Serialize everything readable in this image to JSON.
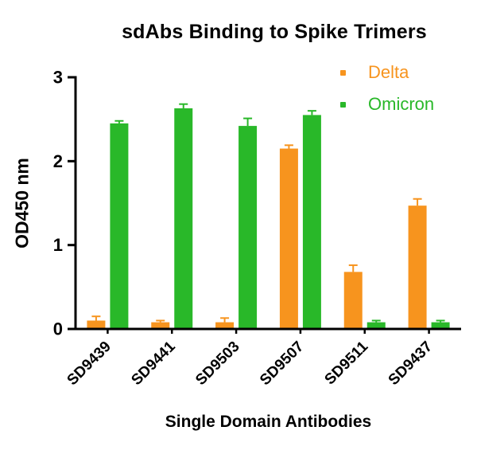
{
  "chart_data": {
    "type": "bar",
    "title": "sdAbs Binding to Spike Trimers",
    "xlabel": "Single Domain Antibodies",
    "ylabel": "OD450 nm",
    "categories": [
      "SD9439",
      "SD9441",
      "SD9503",
      "SD9507",
      "SD9511",
      "SD9437"
    ],
    "series": [
      {
        "name": "Delta",
        "color": "#F7941E",
        "values": [
          0.1,
          0.08,
          0.08,
          2.15,
          0.68,
          1.47
        ],
        "errors": [
          0.05,
          0.02,
          0.05,
          0.04,
          0.08,
          0.08
        ]
      },
      {
        "name": "Omicron",
        "color": "#29B829",
        "values": [
          2.45,
          2.63,
          2.42,
          2.55,
          0.08,
          0.08
        ],
        "errors": [
          0.03,
          0.05,
          0.09,
          0.05,
          0.02,
          0.02
        ]
      }
    ],
    "ylim": [
      0,
      3
    ],
    "yticks": [
      0,
      1,
      2,
      3
    ],
    "grid": false,
    "legend_position": "top-right",
    "axis_color": "#000000"
  }
}
